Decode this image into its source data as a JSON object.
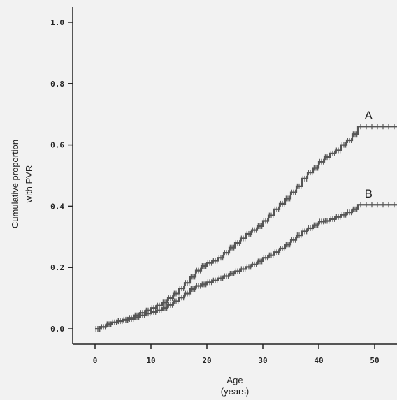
{
  "chart_data": {
    "type": "line",
    "xlabel": [
      "Age",
      "(years)"
    ],
    "ylabel": [
      "Cumulative proportion",
      "with PVR"
    ],
    "xlim": [
      -4,
      54
    ],
    "ylim": [
      -0.05,
      1.05
    ],
    "x_ticks": [
      0,
      10,
      20,
      30,
      40,
      50
    ],
    "y_ticks": [
      0.0,
      0.2,
      0.4,
      0.6,
      0.8,
      1.0
    ],
    "y_tick_labels": [
      "0.0",
      "0.2",
      "0.4",
      "0.6",
      "0.8",
      "1.0"
    ],
    "grid": false,
    "series": [
      {
        "name": "A",
        "color": "#555555",
        "x": [
          0,
          1,
          2,
          3,
          4,
          5,
          6,
          7,
          8,
          9,
          10,
          11,
          12,
          13,
          14,
          15,
          16,
          17,
          18,
          19,
          20,
          21,
          22,
          23,
          24,
          25,
          26,
          27,
          28,
          29,
          30,
          31,
          32,
          33,
          34,
          35,
          36,
          37,
          38,
          39,
          40,
          41,
          42,
          43,
          44,
          45,
          46,
          47,
          48,
          49,
          50,
          51,
          52,
          53,
          54
        ],
        "y": [
          0.0,
          0.006,
          0.015,
          0.021,
          0.025,
          0.03,
          0.036,
          0.044,
          0.052,
          0.06,
          0.068,
          0.076,
          0.086,
          0.1,
          0.115,
          0.132,
          0.15,
          0.17,
          0.19,
          0.205,
          0.215,
          0.222,
          0.232,
          0.248,
          0.265,
          0.28,
          0.295,
          0.31,
          0.322,
          0.335,
          0.352,
          0.37,
          0.39,
          0.408,
          0.425,
          0.445,
          0.465,
          0.49,
          0.51,
          0.525,
          0.545,
          0.56,
          0.572,
          0.582,
          0.6,
          0.615,
          0.635,
          0.66,
          0.66,
          0.66,
          0.66,
          0.66,
          0.66,
          0.66,
          0.66
        ]
      },
      {
        "name": "B",
        "color": "#555555",
        "x": [
          0,
          1,
          2,
          3,
          4,
          5,
          6,
          7,
          8,
          9,
          10,
          11,
          12,
          13,
          14,
          15,
          16,
          17,
          18,
          19,
          20,
          21,
          22,
          23,
          24,
          25,
          26,
          27,
          28,
          29,
          30,
          31,
          32,
          33,
          34,
          35,
          36,
          37,
          38,
          39,
          40,
          41,
          42,
          43,
          44,
          45,
          46,
          47,
          48,
          49,
          50,
          51,
          52,
          53,
          54
        ],
        "y": [
          0.0,
          0.006,
          0.015,
          0.021,
          0.025,
          0.028,
          0.032,
          0.038,
          0.044,
          0.05,
          0.055,
          0.06,
          0.068,
          0.078,
          0.09,
          0.102,
          0.115,
          0.13,
          0.14,
          0.145,
          0.152,
          0.158,
          0.165,
          0.172,
          0.18,
          0.188,
          0.195,
          0.202,
          0.21,
          0.22,
          0.232,
          0.24,
          0.25,
          0.262,
          0.275,
          0.29,
          0.305,
          0.318,
          0.328,
          0.338,
          0.35,
          0.352,
          0.358,
          0.365,
          0.372,
          0.38,
          0.39,
          0.405,
          0.405,
          0.405,
          0.405,
          0.405,
          0.405,
          0.405,
          0.405
        ]
      }
    ]
  }
}
